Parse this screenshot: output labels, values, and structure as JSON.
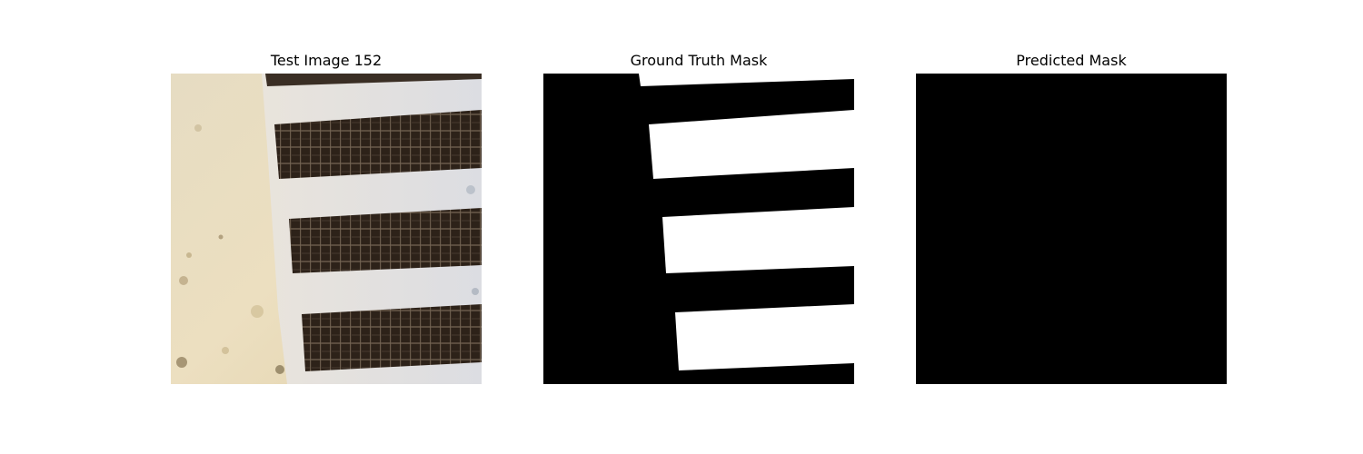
{
  "figure": {
    "panels": [
      {
        "title": "Test Image 152"
      },
      {
        "title": "Ground Truth Mask"
      },
      {
        "title": "Predicted Mask"
      }
    ]
  }
}
